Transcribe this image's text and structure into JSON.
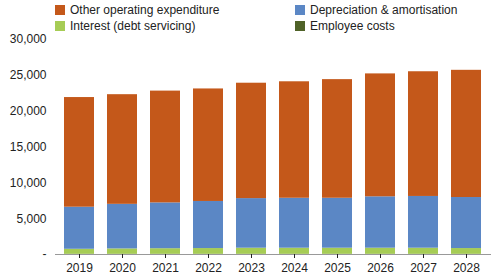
{
  "chart_data": {
    "type": "bar",
    "stacked": true,
    "legend": "top",
    "grid": false,
    "categories": [
      "2019",
      "2020",
      "2021",
      "2022",
      "2023",
      "2024",
      "2025",
      "2026",
      "2027",
      "2028"
    ],
    "series": [
      {
        "name": "Other operating expenditure",
        "color": "#c4581a",
        "values": [
          15300,
          15300,
          15600,
          15700,
          16100,
          16250,
          16550,
          17150,
          17400,
          17750
        ]
      },
      {
        "name": "Depreciation & amortisation",
        "color": "#5b87c5",
        "values": [
          5870,
          6220,
          6390,
          6570,
          6920,
          6970,
          6970,
          7170,
          7220,
          7120
        ]
      },
      {
        "name": "Interest (debt servicing)",
        "color": "#a6cc55",
        "values": [
          700,
          750,
          780,
          800,
          850,
          850,
          850,
          850,
          850,
          800
        ]
      },
      {
        "name": "Employee costs",
        "color": "#4f6228",
        "values": [
          30,
          30,
          30,
          30,
          30,
          30,
          30,
          30,
          30,
          30
        ]
      }
    ],
    "ylim": [
      0,
      30000
    ],
    "yticks": [
      {
        "value": 0,
        "label": "-"
      },
      {
        "value": 5000,
        "label": "5,000"
      },
      {
        "value": 10000,
        "label": "10,000"
      },
      {
        "value": 15000,
        "label": "15,000"
      },
      {
        "value": 20000,
        "label": "20,000"
      },
      {
        "value": 25000,
        "label": "25,000"
      },
      {
        "value": 30000,
        "label": "30,000"
      }
    ]
  }
}
